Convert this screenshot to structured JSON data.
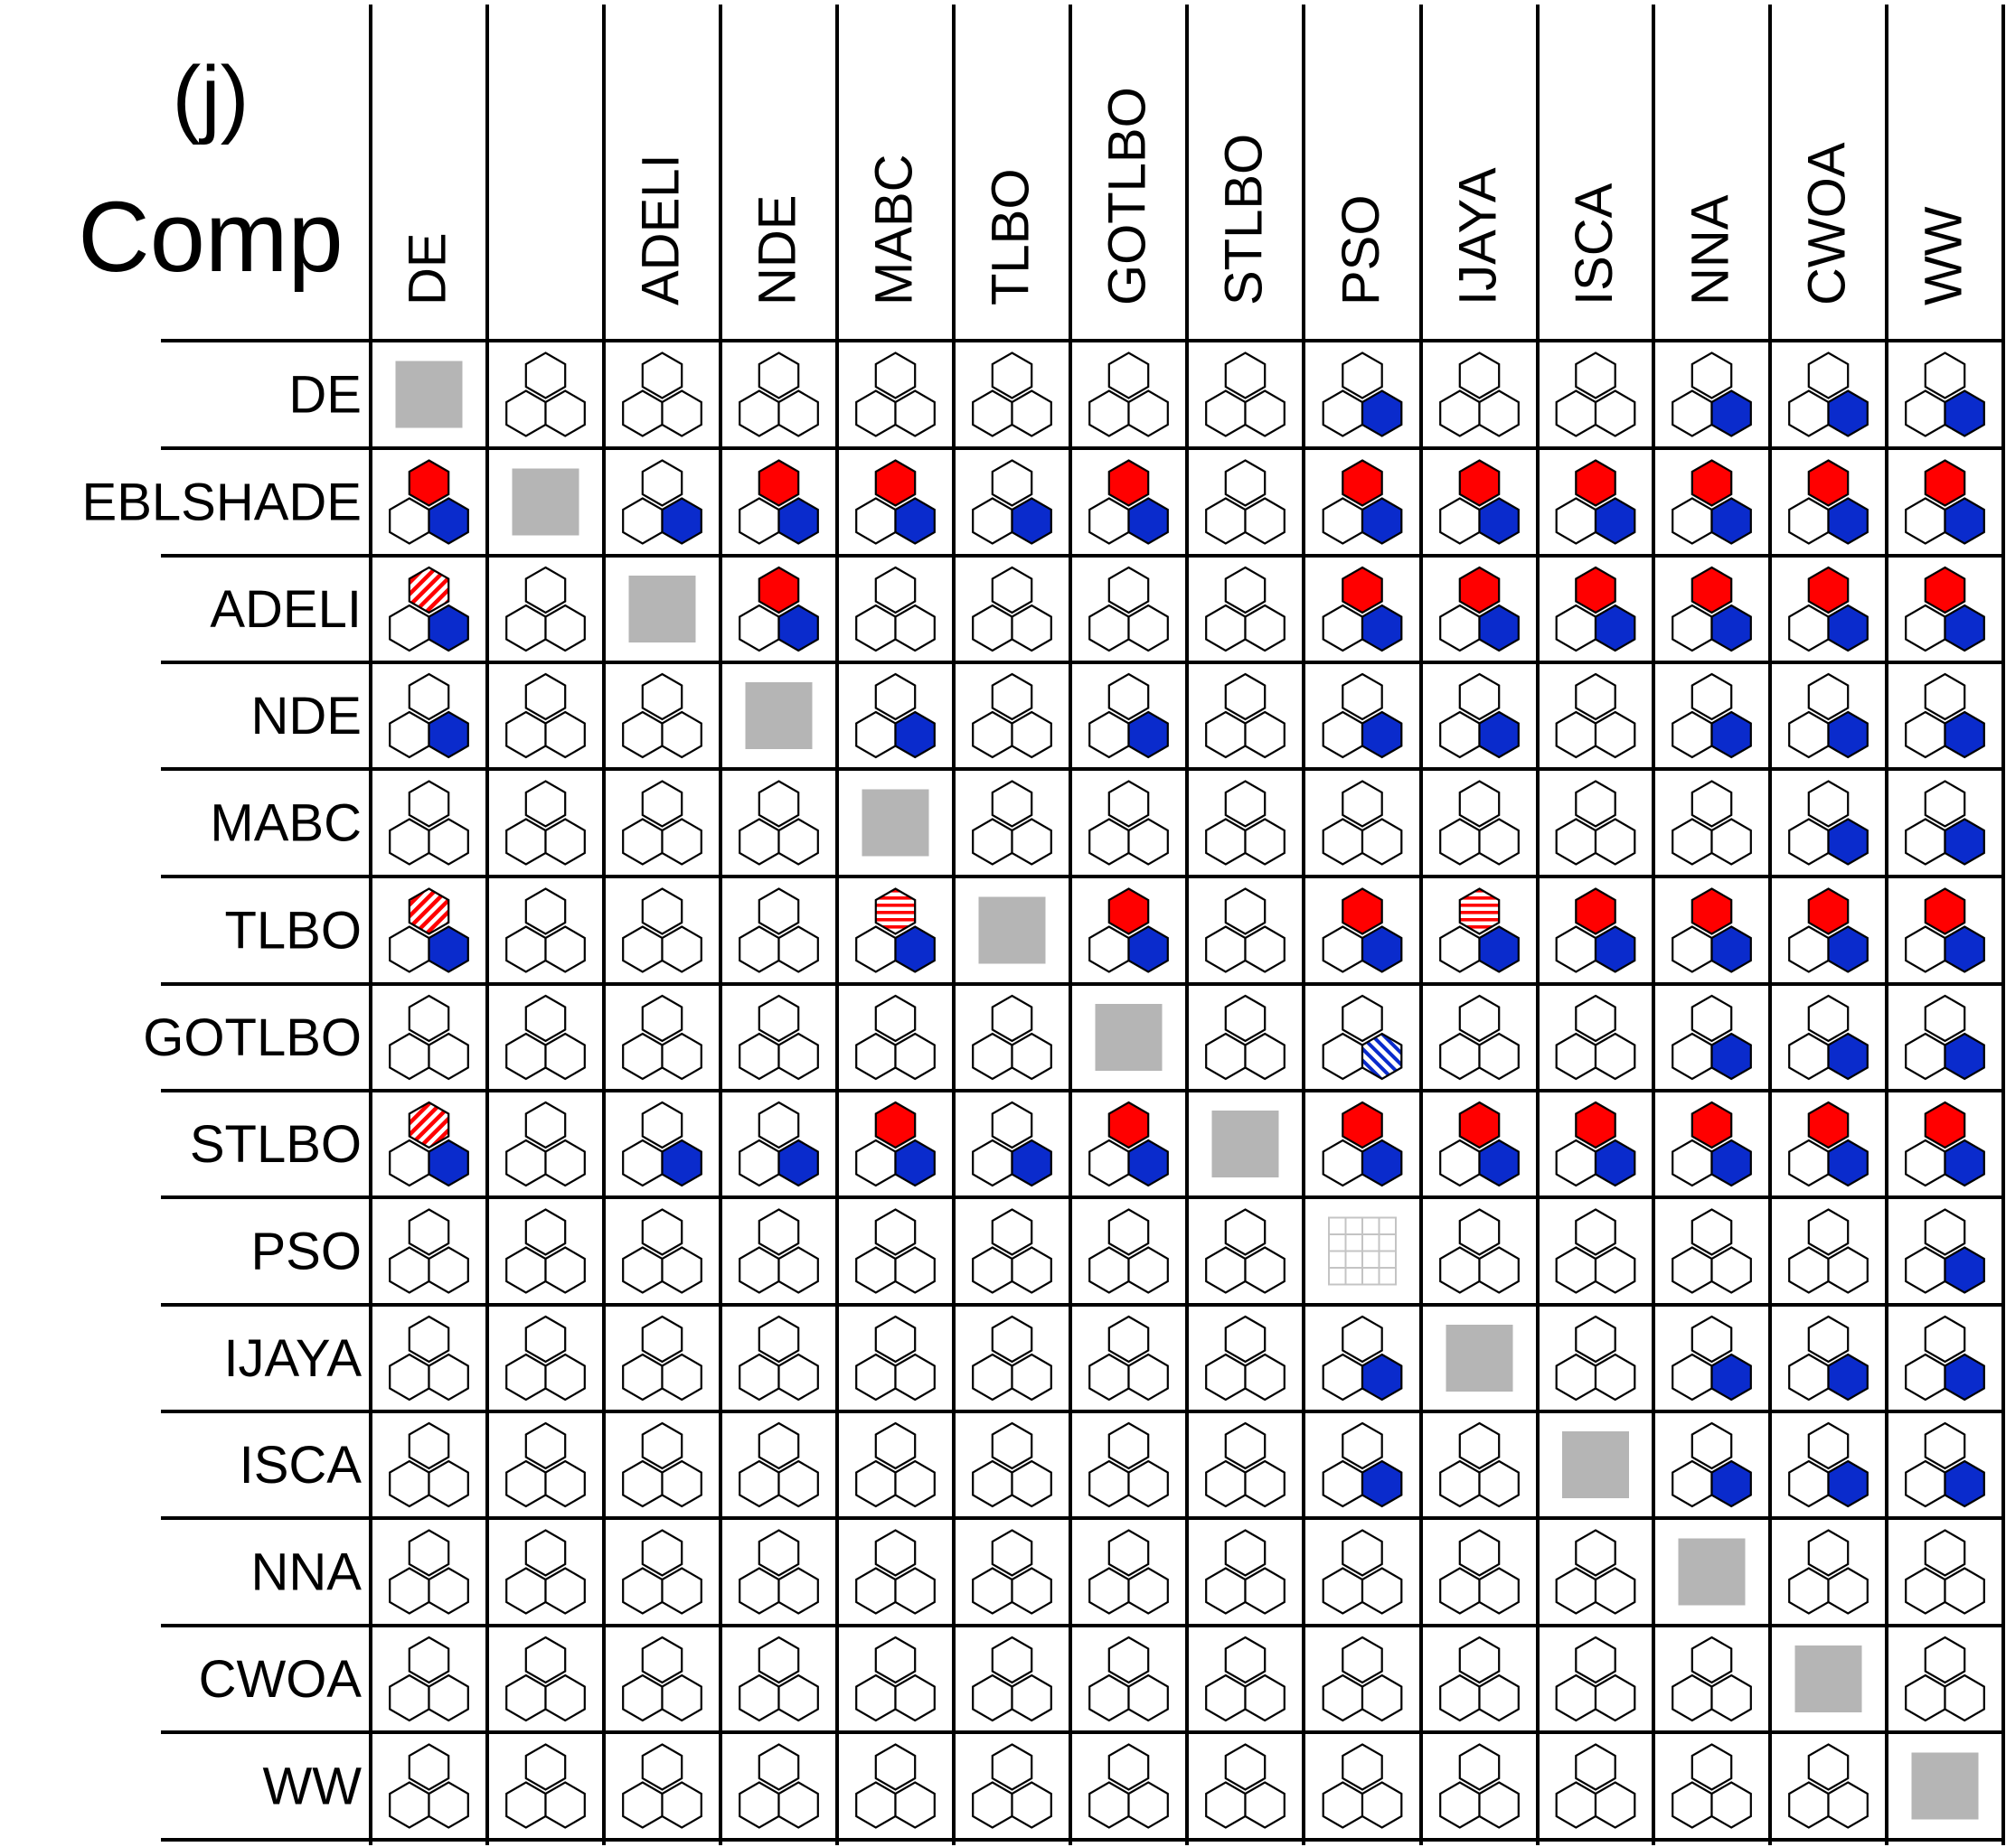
{
  "figure": {
    "panel_label": "(j)",
    "corner_label": "Comp"
  },
  "chart_data": {
    "type": "table",
    "title": "",
    "columns": [
      "DE",
      "",
      "ADELI",
      "NDE",
      "MABC",
      "TLBO",
      "GOTLBO",
      "STLBO",
      "PSO",
      "IJAYA",
      "ISCA",
      "NNA",
      "CWOA",
      "WW"
    ],
    "rows": [
      "DE",
      "EBLSHADE",
      "ADELI",
      "NDE",
      "MABC",
      "TLBO",
      "GOTLBO",
      "STLBO",
      "PSO",
      "IJAYA",
      "ISCA",
      "NNA",
      "CWOA",
      "WW"
    ],
    "legend": {
      "self": "gray square",
      "self_grid": "light gray grid square",
      "red": "top hexagon solid red",
      "red_diag": "top hexagon red diagonal hatch",
      "red_horiz": "top hexagon red horizontal hatch",
      "blue": "bottom-right hexagon solid blue",
      "blue_diag": "bottom-right hexagon blue diagonal hatch",
      "empty": "all three hexagons white"
    },
    "cells": [
      [
        "self",
        "",
        "",
        "",
        "",
        "",
        "",
        "",
        "B",
        "",
        "",
        "B",
        "B",
        "B"
      ],
      [
        "RB",
        "self",
        "B",
        "RB",
        "RB",
        "B",
        "RB",
        "",
        "RB",
        "RB",
        "RB",
        "RB",
        "RB",
        "RB"
      ],
      [
        "rdB",
        "",
        "self",
        "RB",
        "",
        "",
        "",
        "",
        "RB",
        "RB",
        "RB",
        "RB",
        "RB",
        "RB"
      ],
      [
        "B",
        "",
        "",
        "self",
        "B",
        "",
        "B",
        "",
        "B",
        "B",
        "",
        "B",
        "B",
        "B"
      ],
      [
        "",
        "",
        "",
        "",
        "self",
        "",
        "",
        "",
        "",
        "",
        "",
        "",
        "B",
        "B"
      ],
      [
        "rdB",
        "",
        "",
        "",
        "rhB",
        "self",
        "RB",
        "",
        "RB",
        "rhB",
        "RB",
        "RB",
        "RB",
        "RB"
      ],
      [
        "",
        "",
        "",
        "",
        "",
        "",
        "self",
        "",
        "bd",
        "",
        "",
        "B",
        "B",
        "B"
      ],
      [
        "rdB",
        "",
        "B",
        "B",
        "RB",
        "B",
        "RB",
        "self",
        "RB",
        "RB",
        "RB",
        "RB",
        "RB",
        "RB"
      ],
      [
        "",
        "",
        "",
        "",
        "",
        "",
        "",
        "",
        "grid",
        "",
        "",
        "",
        "",
        "B"
      ],
      [
        "",
        "",
        "",
        "",
        "",
        "",
        "",
        "",
        "B",
        "self",
        "",
        "B",
        "B",
        "B"
      ],
      [
        "",
        "",
        "",
        "",
        "",
        "",
        "",
        "",
        "B",
        "",
        "self",
        "B",
        "B",
        "B"
      ],
      [
        "",
        "",
        "",
        "",
        "",
        "",
        "",
        "",
        "",
        "",
        "",
        "self",
        "",
        ""
      ],
      [
        "",
        "",
        "",
        "",
        "",
        "",
        "",
        "",
        "",
        "",
        "",
        "",
        "self",
        ""
      ],
      [
        "",
        "",
        "",
        "",
        "",
        "",
        "",
        "",
        "",
        "",
        "",
        "",
        "",
        "self"
      ]
    ],
    "colors": {
      "red": "#ff0000",
      "blue": "#0a2bcc",
      "self": "#b5b5b5",
      "grid": "#c4c4c4",
      "line": "#000000"
    }
  }
}
